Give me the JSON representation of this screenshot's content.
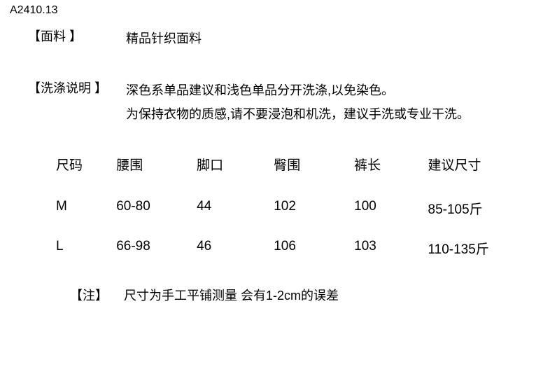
{
  "product_code": "A2410.13",
  "fabric": {
    "label": "【面料 】",
    "value": "精品针织面料"
  },
  "washing": {
    "label": "【洗涤说明 】",
    "line1": "深色系单品建议和浅色单品分开洗涤,以免染色。",
    "line2": "为保持衣物的质感,请不要浸泡和机洗，建议手洗或专业干洗。"
  },
  "table": {
    "headers": {
      "size": "尺码",
      "waist": "腰围",
      "leg_opening": "脚口",
      "hip": "臀围",
      "length": "裤长",
      "suggested": "建议尺寸"
    },
    "rows": [
      {
        "size": "M",
        "waist": "60-80",
        "leg_opening": "44",
        "hip": "102",
        "length": "100",
        "suggested": "85-105斤"
      },
      {
        "size": "L",
        "waist": "66-98",
        "leg_opening": "46",
        "hip": "106",
        "length": "103",
        "suggested": "110-135斤"
      }
    ]
  },
  "note": {
    "label": "【注】",
    "value": "尺寸为手工平铺测量 会有1-2cm的误差"
  },
  "colors": {
    "text": "#000000",
    "background": "#ffffff"
  },
  "typography": {
    "body_fontsize": 18,
    "table_fontsize": 19,
    "code_fontsize": 16
  }
}
